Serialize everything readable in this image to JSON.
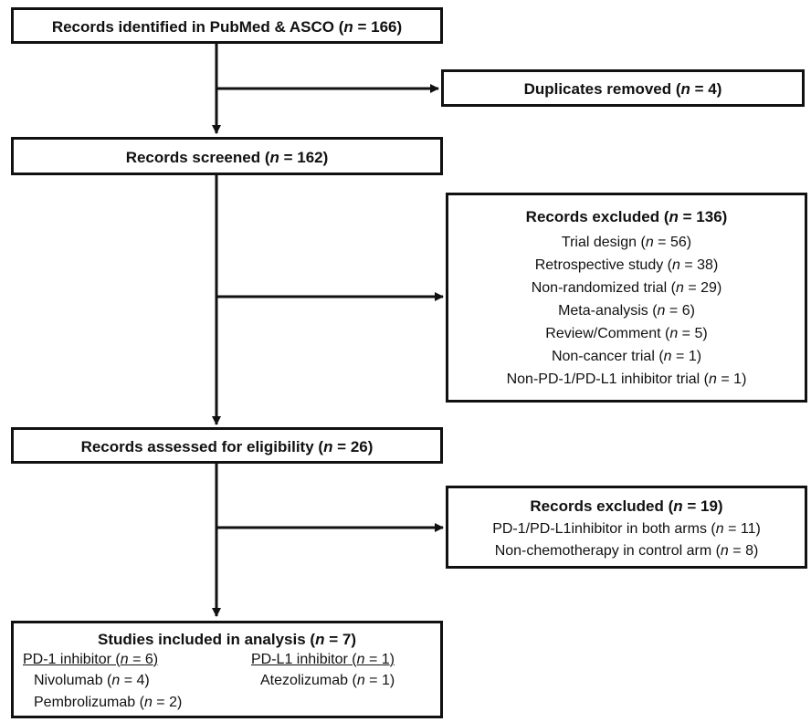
{
  "flowchart": {
    "identified": {
      "label": "Records identified in PubMed & ASCO",
      "n": "166"
    },
    "duplicates": {
      "label": "Duplicates removed",
      "n": "4"
    },
    "screened": {
      "label": "Records screened",
      "n": "162"
    },
    "excluded1": {
      "title_label": "Records excluded",
      "title_n": "136",
      "items": [
        {
          "label": "Trial design",
          "n": "56"
        },
        {
          "label": "Retrospective study",
          "n": "38"
        },
        {
          "label": "Non-randomized trial",
          "n": "29"
        },
        {
          "label": "Meta-analysis",
          "n": "6"
        },
        {
          "label": "Review/Comment",
          "n": "5"
        },
        {
          "label": "Non-cancer trial",
          "n": "1"
        },
        {
          "label": "Non-PD-1/PD-L1 inhibitor trial",
          "n": "1"
        }
      ]
    },
    "eligibility": {
      "label": "Records assessed for eligibility",
      "n": "26"
    },
    "excluded2": {
      "title_label": "Records excluded",
      "title_n": "19",
      "items": [
        {
          "label": "PD-1/PD-L1inhibitor in both arms",
          "n": "11"
        },
        {
          "label": "Non-chemotherapy in control arm",
          "n": "8"
        }
      ]
    },
    "included": {
      "title_label": "Studies included in analysis",
      "title_n": "7",
      "pd1": {
        "label": "PD-1 inhibitor",
        "n": "6",
        "drugs": [
          {
            "label": "Nivolumab",
            "n": "4"
          },
          {
            "label": "Pembrolizumab",
            "n": "2"
          }
        ]
      },
      "pdl1": {
        "label": "PD-L1 inhibitor",
        "n": "1",
        "drugs": [
          {
            "label": "Atezolizumab",
            "n": "1"
          }
        ]
      }
    }
  }
}
